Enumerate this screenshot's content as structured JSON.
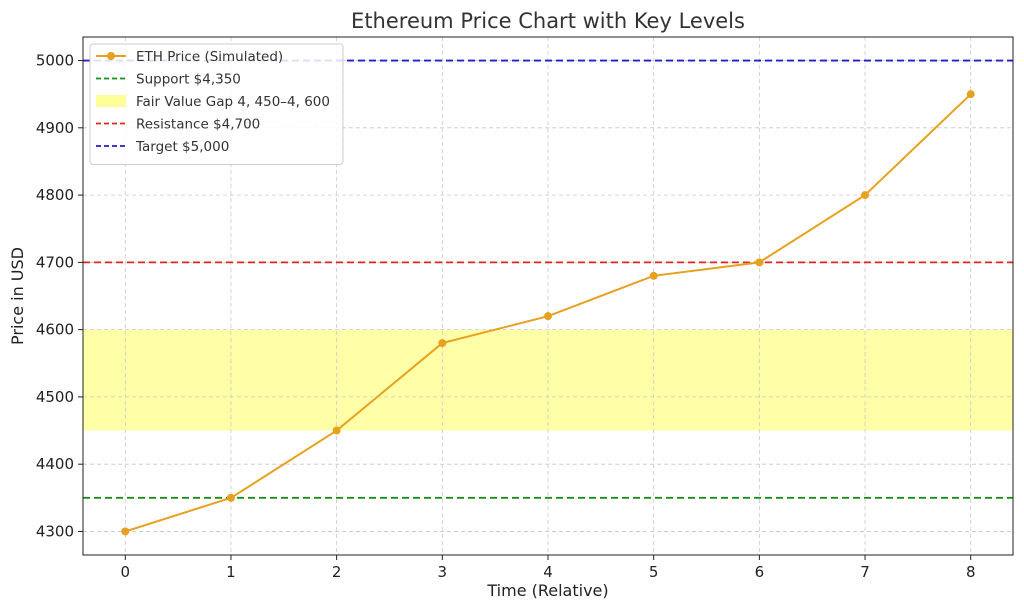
{
  "chart_data": {
    "type": "line",
    "title": "Ethereum Price Chart with Key Levels",
    "xlabel": "Time (Relative)",
    "ylabel": "Price in USD",
    "xlim": [
      -0.4,
      8.4
    ],
    "ylim": [
      4265,
      5035
    ],
    "xticks": [
      0,
      1,
      2,
      3,
      4,
      5,
      6,
      7,
      8
    ],
    "yticks": [
      4300,
      4400,
      4500,
      4600,
      4700,
      4800,
      4900,
      5000
    ],
    "grid": true,
    "legend_position": "top-left",
    "series": [
      {
        "name": "ETH Price (Simulated)",
        "color": "#E6A11F",
        "x": [
          0,
          1,
          2,
          3,
          4,
          5,
          6,
          7,
          8
        ],
        "y": [
          4300,
          4350,
          4450,
          4580,
          4620,
          4680,
          4700,
          4800,
          4950
        ]
      }
    ],
    "levels": [
      {
        "name": "Support $4,350",
        "value": 4350,
        "color": "#1A8C1A",
        "style": "dashed"
      },
      {
        "name": "Resistance $4,700",
        "value": 4700,
        "color": "#E62222",
        "style": "dashed"
      },
      {
        "name": "Target $5,000",
        "value": 5000,
        "color": "#1F1FCC",
        "style": "dashed"
      }
    ],
    "band": {
      "name": "Fair Value Gap 4, 450–4, 600",
      "low": 4450,
      "high": 4600,
      "color": "#FFFF99"
    },
    "legend": [
      {
        "label": "ETH Price (Simulated)",
        "kind": "line-marker",
        "color": "#E6A11F"
      },
      {
        "label": "Support $4,350",
        "kind": "dashed",
        "color": "#1A8C1A"
      },
      {
        "label": "Fair Value Gap 4, 450–4, 600",
        "kind": "patch",
        "color": "#FFFF99"
      },
      {
        "label": "Resistance $4,700",
        "kind": "dashed",
        "color": "#E62222"
      },
      {
        "label": "Target $5,000",
        "kind": "dashed",
        "color": "#1F1FCC"
      }
    ]
  }
}
